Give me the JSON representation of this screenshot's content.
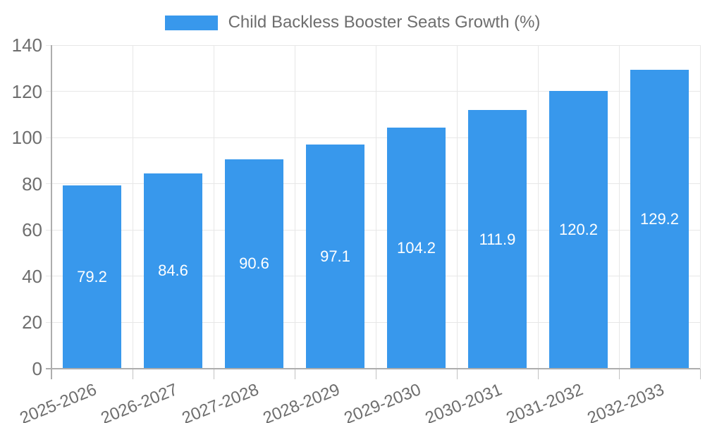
{
  "chart_data": {
    "type": "bar",
    "categories": [
      "2025-2026",
      "2026-2027",
      "2027-2028",
      "2028-2029",
      "2029-2030",
      "2030-2031",
      "2031-2032",
      "2032-2033"
    ],
    "series": [
      {
        "name": "Child Backless Booster Seats Growth (%)",
        "values": [
          79.2,
          84.6,
          90.6,
          97.1,
          104.2,
          111.9,
          120.2,
          129.2
        ]
      }
    ],
    "value_labels": [
      "79.2",
      "84.6",
      "90.6",
      "97.1",
      "104.2",
      "111.9",
      "120.2",
      "129.2"
    ],
    "title": "",
    "xlabel": "",
    "ylabel": "",
    "ylim": [
      0,
      140
    ],
    "yticks": [
      0,
      20,
      40,
      60,
      80,
      100,
      120,
      140
    ],
    "grid": true,
    "legend_position": "top",
    "value_label_position": "inside-center",
    "x_label_rotation_deg": -22,
    "colors": {
      "bar": "#3898EC",
      "value_label": "#FFFFFF",
      "axis_text": "#6E6E6E",
      "grid": "#E7E7E7",
      "axis_border": "#ADADAD",
      "tick_mark": "#C2C2C2",
      "background": "#FFFFFF"
    }
  }
}
